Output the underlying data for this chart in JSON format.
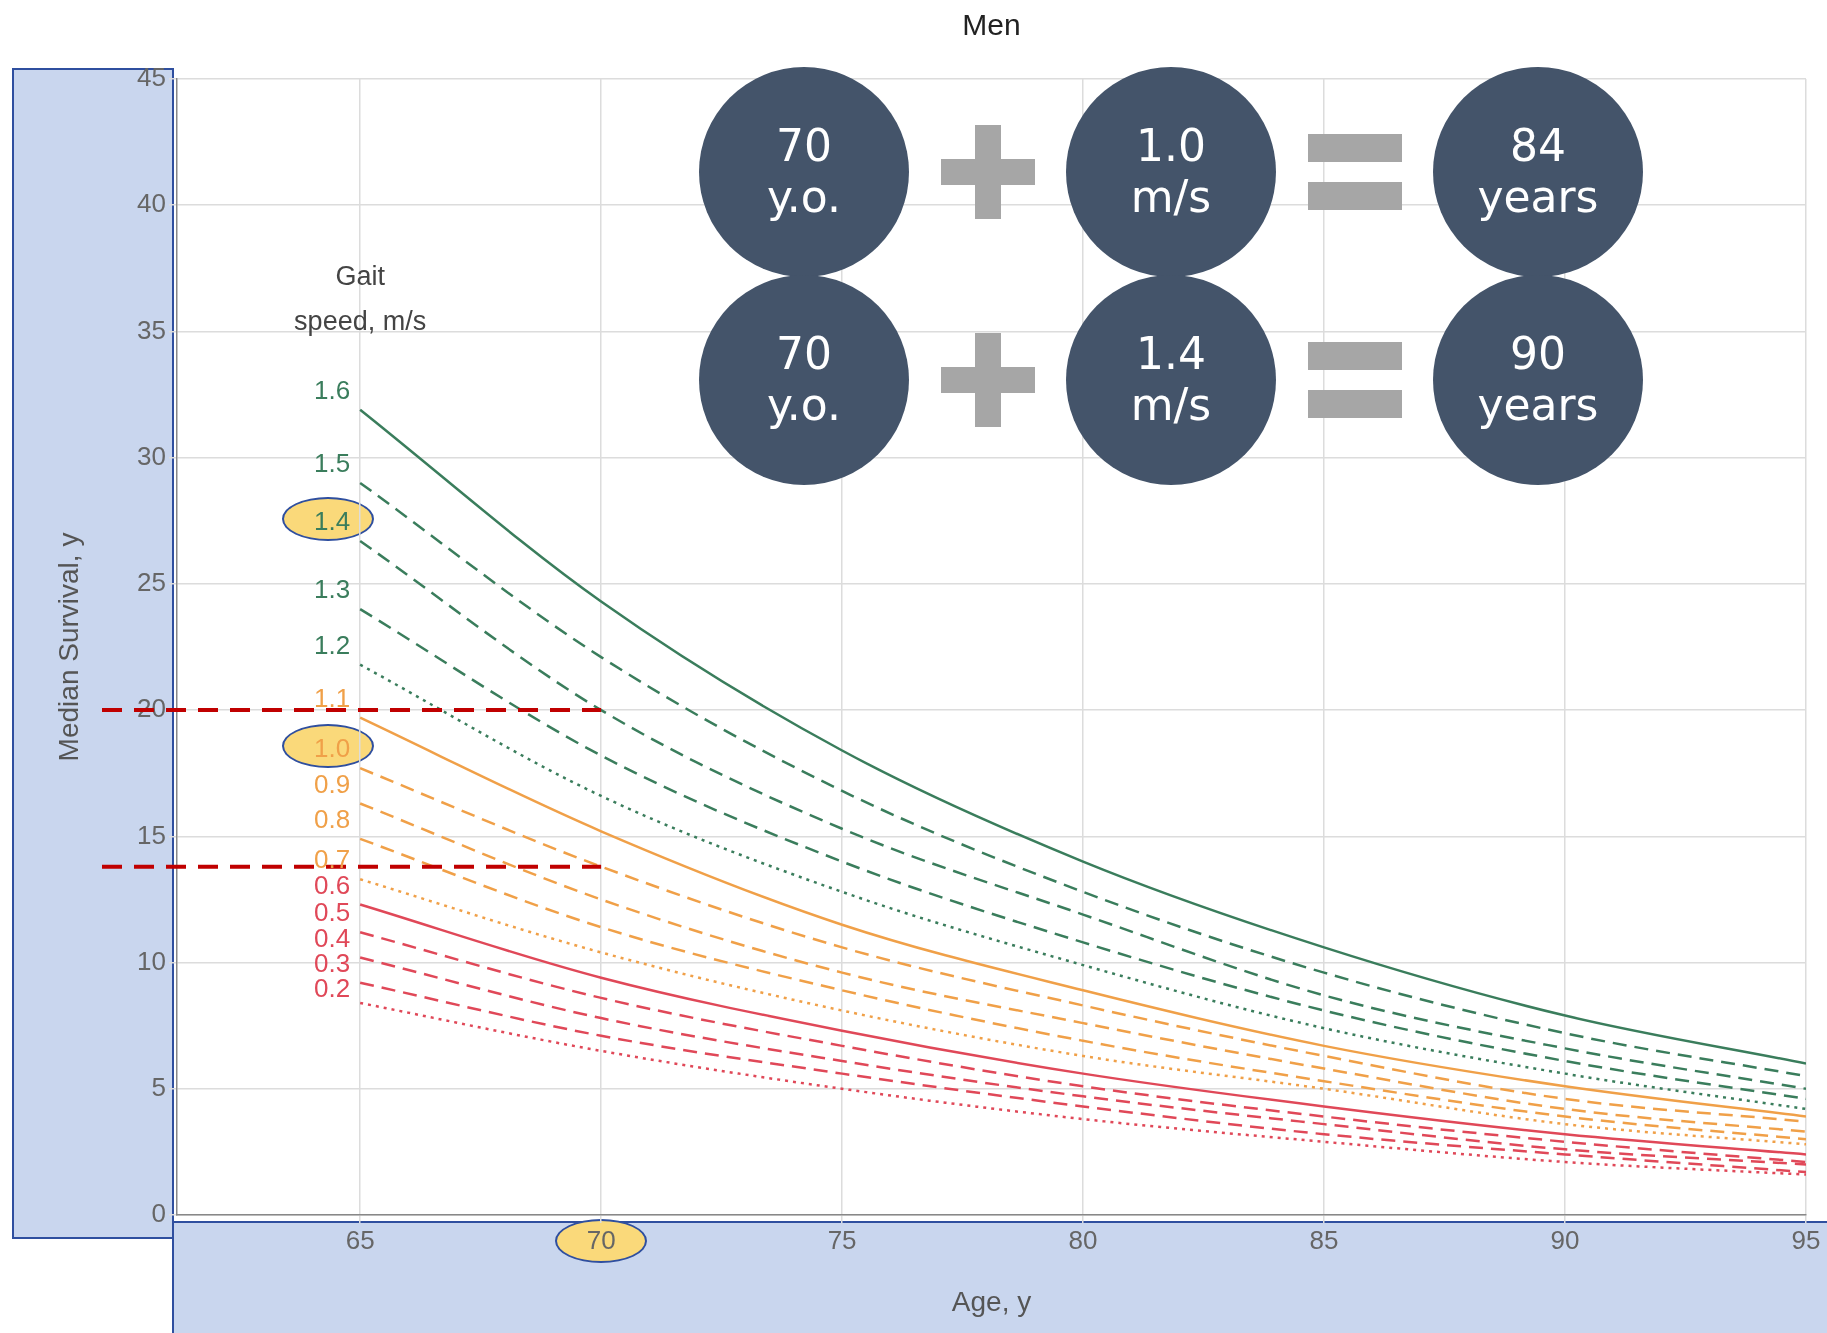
{
  "chart_data": {
    "type": "line",
    "title": "Men",
    "xlabel": "Age, y",
    "ylabel": "Median Survival, y",
    "legend_title": "Gait speed, m/s",
    "x": [
      65,
      70,
      75,
      80,
      85,
      90,
      95
    ],
    "xlim": [
      61.2,
      95
    ],
    "xticks": [
      65,
      70,
      75,
      80,
      85,
      90,
      95
    ],
    "ylim": [
      0,
      45
    ],
    "yticks": [
      0,
      5,
      10,
      15,
      20,
      25,
      30,
      35,
      40,
      45
    ],
    "grid": true,
    "series": [
      {
        "name": "1.6",
        "color": "#3a7d5c",
        "line_style": "solid",
        "values": [
          31.9,
          24.3,
          18.4,
          14.0,
          10.6,
          7.9,
          6.0
        ]
      },
      {
        "name": "1.5",
        "color": "#3a7d5c",
        "line_style": "dashed",
        "values": [
          29.0,
          22.1,
          16.8,
          12.8,
          9.6,
          7.2,
          5.5
        ]
      },
      {
        "name": "1.4",
        "color": "#3a7d5c",
        "line_style": "dashed",
        "values": [
          26.7,
          20.0,
          15.3,
          11.9,
          8.7,
          6.6,
          5.0
        ]
      },
      {
        "name": "1.3",
        "color": "#3a7d5c",
        "line_style": "dashed",
        "values": [
          24.0,
          18.2,
          14.0,
          10.8,
          8.1,
          6.1,
          4.6
        ]
      },
      {
        "name": "1.2",
        "color": "#3a7d5c",
        "line_style": "dotted",
        "values": [
          21.8,
          16.6,
          12.8,
          9.9,
          7.4,
          5.6,
          4.2
        ]
      },
      {
        "name": "1.1",
        "color": "#f0a048",
        "line_style": "solid",
        "values": [
          19.7,
          15.2,
          11.5,
          8.9,
          6.7,
          5.1,
          3.9
        ]
      },
      {
        "name": "1.0",
        "color": "#f0a048",
        "line_style": "dashed",
        "values": [
          17.7,
          13.8,
          10.6,
          8.3,
          6.3,
          4.6,
          3.7
        ]
      },
      {
        "name": "0.9",
        "color": "#f0a048",
        "line_style": "dashed",
        "values": [
          16.3,
          12.5,
          9.6,
          7.6,
          5.8,
          4.2,
          3.3
        ]
      },
      {
        "name": "0.8",
        "color": "#f0a048",
        "line_style": "dashed",
        "values": [
          14.9,
          11.4,
          8.9,
          6.9,
          5.3,
          3.9,
          3.0
        ]
      },
      {
        "name": "0.7",
        "color": "#f0a048",
        "line_style": "dotted",
        "values": [
          13.3,
          10.4,
          8.1,
          6.3,
          5.0,
          3.6,
          2.8
        ]
      },
      {
        "name": "0.6",
        "color": "#e04858",
        "line_style": "solid",
        "values": [
          12.3,
          9.4,
          7.3,
          5.6,
          4.3,
          3.2,
          2.4
        ]
      },
      {
        "name": "0.5",
        "color": "#e04858",
        "line_style": "dashed",
        "values": [
          11.2,
          8.6,
          6.7,
          5.1,
          3.9,
          2.9,
          2.1
        ]
      },
      {
        "name": "0.4",
        "color": "#e04858",
        "line_style": "dashed",
        "values": [
          10.2,
          7.8,
          6.1,
          4.7,
          3.6,
          2.6,
          2.0
        ]
      },
      {
        "name": "0.3",
        "color": "#e04858",
        "line_style": "dashed",
        "values": [
          9.2,
          7.1,
          5.6,
          4.3,
          3.2,
          2.4,
          1.7
        ]
      },
      {
        "name": "0.2",
        "color": "#e04858",
        "line_style": "dotted",
        "values": [
          8.4,
          6.5,
          5.0,
          3.8,
          2.9,
          2.1,
          1.6
        ]
      }
    ],
    "ref_lines": [
      {
        "axis": "y",
        "value": 20,
        "color": "#c00000",
        "line_style": "dashed"
      },
      {
        "axis": "y",
        "value": 13.8,
        "color": "#c00000",
        "line_style": "dashed"
      }
    ],
    "annotations": [
      "70 y.o.",
      "1.0 m/s",
      "84 years",
      "70 y.o.",
      "1.4 m/s",
      "90 years"
    ]
  }
}
